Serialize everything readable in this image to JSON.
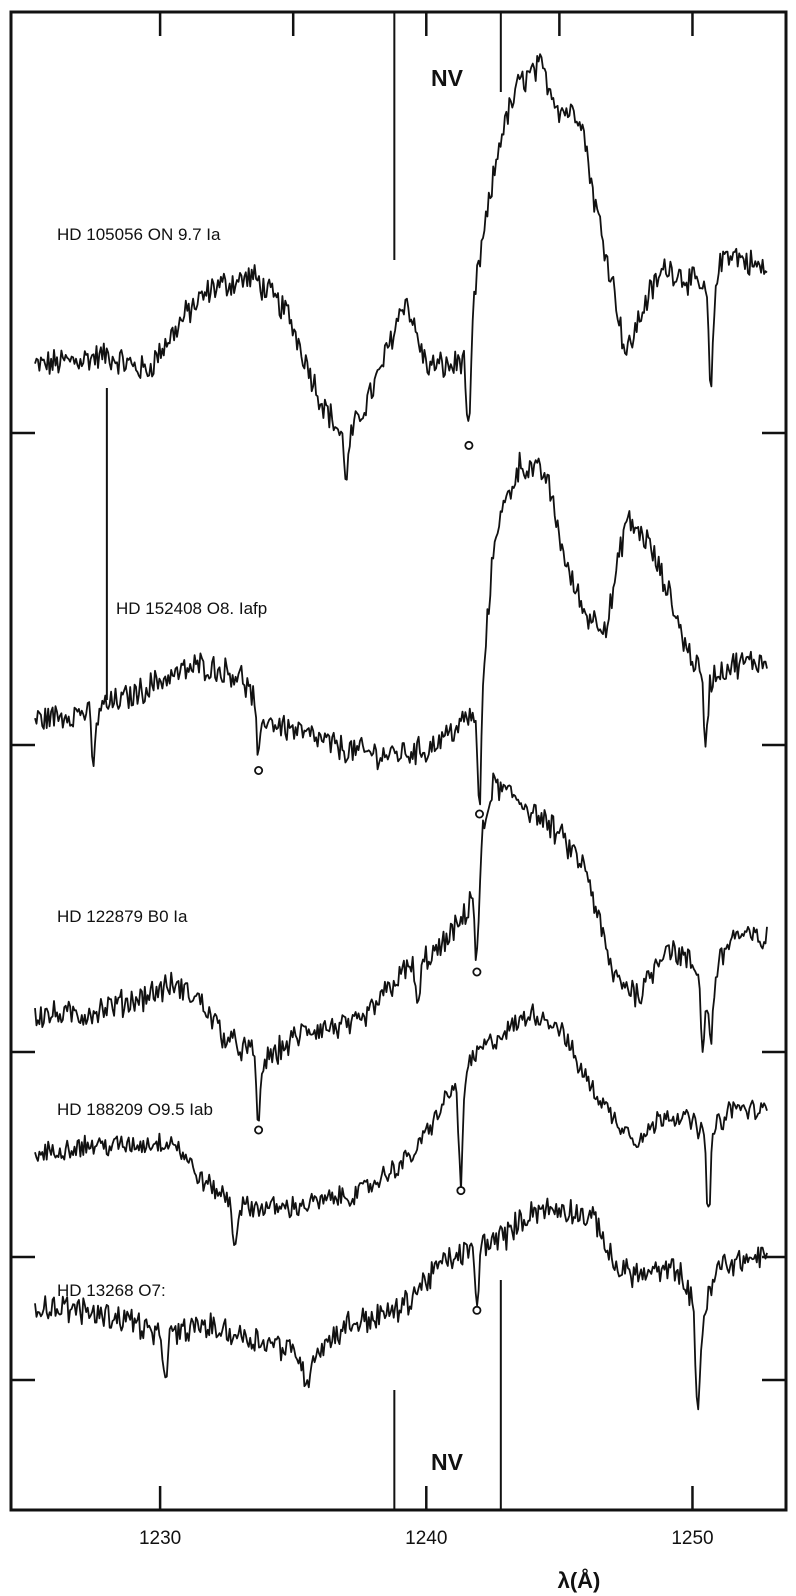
{
  "chart_data": {
    "type": "line",
    "xlabel": "λ(Å)",
    "xlim": [
      1225.3,
      1252.8
    ],
    "x_ticks": [
      "1230",
      "1240",
      "1250"
    ],
    "y_ticks_count": 5,
    "ion_label": "NV",
    "ion_marker_wavelengths": [
      1238.8,
      1242.8
    ],
    "series": [
      {
        "name": "HD 105056  ON 9.7 Ia",
        "noise": 12,
        "dip_markers": [
          1241.6
        ],
        "profile": [
          [
            1225.3,
            -20
          ],
          [
            1228.0,
            -10
          ],
          [
            1229.5,
            -25
          ],
          [
            1231.0,
            30
          ],
          [
            1232.0,
            55
          ],
          [
            1233.5,
            65
          ],
          [
            1234.8,
            30
          ],
          [
            1236.0,
            -50
          ],
          [
            1237.0,
            -95
          ],
          [
            1238.2,
            -30
          ],
          [
            1239.2,
            45
          ],
          [
            1240.0,
            -20
          ],
          [
            1241.0,
            -20
          ],
          [
            1241.5,
            -10
          ],
          [
            1242.0,
            80
          ],
          [
            1242.8,
            200
          ],
          [
            1243.5,
            250
          ],
          [
            1244.3,
            265
          ],
          [
            1245.0,
            225
          ],
          [
            1245.8,
            220
          ],
          [
            1246.3,
            140
          ],
          [
            1247.0,
            60
          ],
          [
            1247.5,
            -10
          ],
          [
            1248.3,
            45
          ],
          [
            1249.0,
            75
          ],
          [
            1250.0,
            60
          ],
          [
            1250.6,
            50
          ],
          [
            1251.3,
            90
          ],
          [
            1252.0,
            80
          ],
          [
            1252.8,
            70
          ]
        ],
        "dips": [
          [
            1241.6,
            -95
          ],
          [
            1250.7,
            -100
          ],
          [
            1237.0,
            -30
          ]
        ]
      },
      {
        "name": "HD 152408  O8. Iafp",
        "noise": 12,
        "dip_markers": [
          1233.7,
          1242.0
        ],
        "profile": [
          [
            1225.3,
            -30
          ],
          [
            1227.5,
            -20
          ],
          [
            1229.0,
            -5
          ],
          [
            1230.0,
            10
          ],
          [
            1231.5,
            25
          ],
          [
            1233.0,
            15
          ],
          [
            1234.0,
            -30
          ],
          [
            1235.5,
            -45
          ],
          [
            1237.0,
            -60
          ],
          [
            1238.5,
            -65
          ],
          [
            1240.0,
            -60
          ],
          [
            1241.0,
            -40
          ],
          [
            1242.0,
            -20
          ],
          [
            1242.6,
            160
          ],
          [
            1243.5,
            225
          ],
          [
            1244.5,
            215
          ],
          [
            1245.3,
            120
          ],
          [
            1246.0,
            75
          ],
          [
            1246.8,
            65
          ],
          [
            1247.5,
            170
          ],
          [
            1248.3,
            150
          ],
          [
            1249.2,
            90
          ],
          [
            1249.8,
            40
          ],
          [
            1250.5,
            10
          ],
          [
            1251.5,
            25
          ],
          [
            1252.8,
            30
          ]
        ],
        "dips": [
          [
            1227.5,
            -55
          ],
          [
            1233.7,
            -55
          ],
          [
            1242.0,
            -95
          ],
          [
            1250.5,
            -60
          ]
        ]
      },
      {
        "name": "HD 122879  B0 Ia",
        "noise": 12,
        "dip_markers": [
          1233.7,
          1241.9
        ],
        "profile": [
          [
            1225.3,
            -30
          ],
          [
            1227.0,
            -30
          ],
          [
            1229.0,
            -15
          ],
          [
            1230.5,
            0
          ],
          [
            1231.5,
            -15
          ],
          [
            1232.5,
            -55
          ],
          [
            1234.0,
            -75
          ],
          [
            1235.5,
            -45
          ],
          [
            1237.5,
            -40
          ],
          [
            1239.0,
            10
          ],
          [
            1240.5,
            35
          ],
          [
            1241.5,
            70
          ],
          [
            1242.5,
            200
          ],
          [
            1243.5,
            185
          ],
          [
            1245.0,
            150
          ],
          [
            1246.0,
            115
          ],
          [
            1247.0,
            10
          ],
          [
            1248.0,
            -10
          ],
          [
            1249.0,
            40
          ],
          [
            1250.0,
            20
          ],
          [
            1250.6,
            0
          ],
          [
            1251.5,
            50
          ],
          [
            1252.8,
            45
          ]
        ],
        "dips": [
          [
            1233.7,
            -65
          ],
          [
            1239.7,
            -45
          ],
          [
            1241.9,
            -100
          ],
          [
            1250.4,
            -70
          ],
          [
            1250.7,
            -60
          ]
        ]
      },
      {
        "name": "HD 188209  O9.5 Iab",
        "noise": 10,
        "dip_markers": [
          1241.3
        ],
        "profile": [
          [
            1225.3,
            0
          ],
          [
            1227.0,
            10
          ],
          [
            1229.0,
            10
          ],
          [
            1230.5,
            15
          ],
          [
            1231.5,
            -25
          ],
          [
            1233.0,
            -55
          ],
          [
            1235.0,
            -55
          ],
          [
            1237.5,
            -40
          ],
          [
            1239.5,
            0
          ],
          [
            1241.0,
            70
          ],
          [
            1242.0,
            110
          ],
          [
            1243.0,
            130
          ],
          [
            1244.0,
            150
          ],
          [
            1245.0,
            135
          ],
          [
            1246.0,
            80
          ],
          [
            1247.0,
            40
          ],
          [
            1248.0,
            15
          ],
          [
            1249.0,
            45
          ],
          [
            1250.0,
            35
          ],
          [
            1250.6,
            20
          ],
          [
            1251.5,
            50
          ],
          [
            1252.8,
            45
          ]
        ],
        "dips": [
          [
            1232.8,
            -45
          ],
          [
            1241.3,
            -110
          ],
          [
            1250.6,
            -80
          ]
        ]
      },
      {
        "name": "HD 13268  O7:",
        "noise": 12,
        "dip_markers": [
          1241.9
        ],
        "profile": [
          [
            1225.3,
            30
          ],
          [
            1227.0,
            25
          ],
          [
            1229.0,
            15
          ],
          [
            1230.0,
            -5
          ],
          [
            1231.5,
            10
          ],
          [
            1233.0,
            0
          ],
          [
            1234.5,
            -10
          ],
          [
            1235.5,
            -25
          ],
          [
            1237.0,
            10
          ],
          [
            1239.0,
            25
          ],
          [
            1240.5,
            70
          ],
          [
            1242.0,
            90
          ],
          [
            1243.0,
            100
          ],
          [
            1244.0,
            125
          ],
          [
            1245.5,
            125
          ],
          [
            1246.5,
            110
          ],
          [
            1247.0,
            70
          ],
          [
            1248.0,
            60
          ],
          [
            1249.5,
            65
          ],
          [
            1250.3,
            10
          ],
          [
            1251.0,
            70
          ],
          [
            1252.8,
            80
          ]
        ],
        "dips": [
          [
            1230.2,
            -35
          ],
          [
            1235.5,
            -35
          ],
          [
            1241.9,
            -55
          ],
          [
            1250.2,
            -90
          ]
        ]
      }
    ]
  }
}
